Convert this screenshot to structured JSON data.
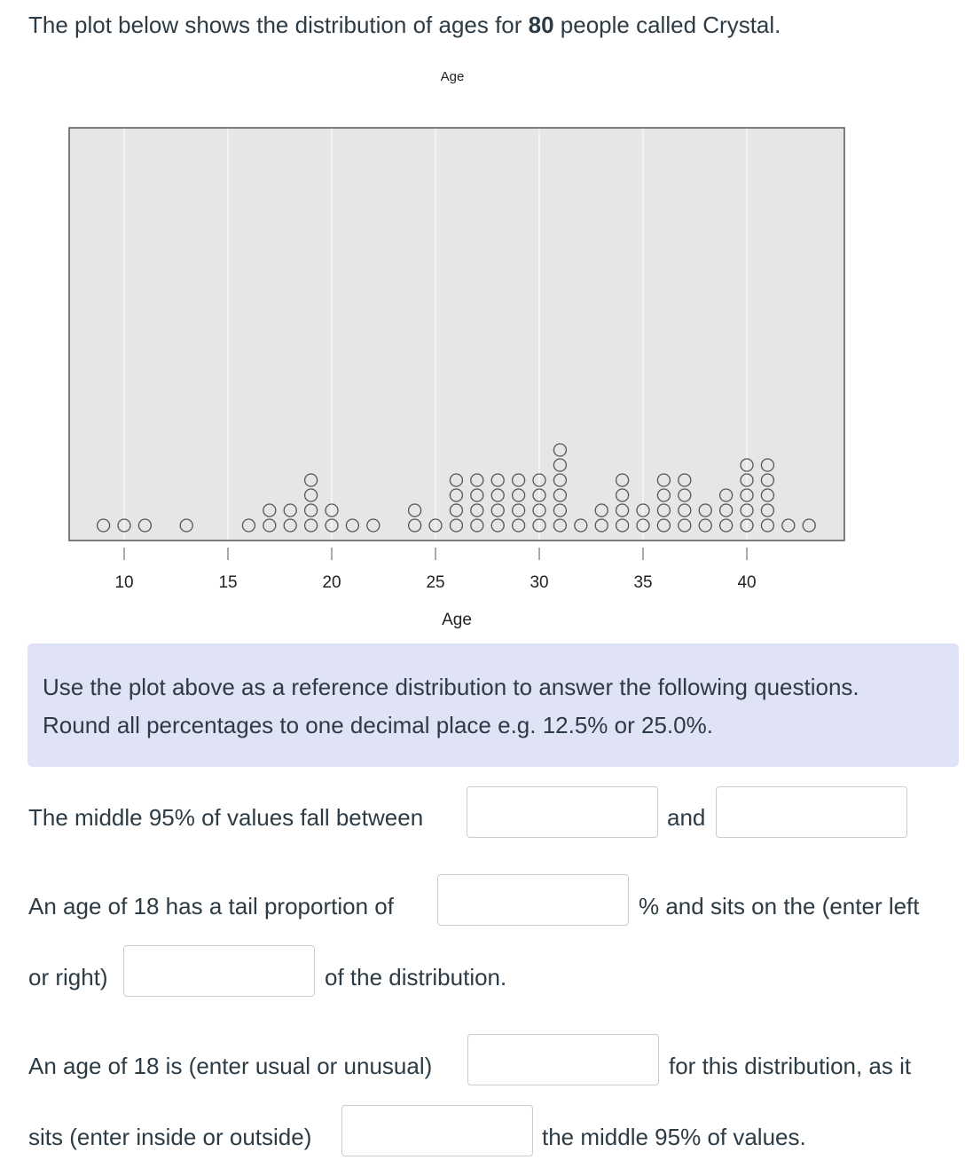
{
  "header": {
    "intro_start": "The plot below shows the distribution of ages for ",
    "count": 80,
    "intro_end": " people called Crystal."
  },
  "chart_data": {
    "type": "dot",
    "title": "Age",
    "x_label": "Age",
    "x": [
      9,
      10,
      11,
      13,
      16,
      17,
      18,
      19,
      20,
      21,
      22,
      24,
      25,
      26,
      27,
      28,
      29,
      30,
      31,
      32,
      33,
      34,
      35,
      36,
      37,
      38,
      39,
      40,
      41,
      42,
      43
    ],
    "values": [
      1,
      1,
      1,
      1,
      1,
      2,
      2,
      4,
      2,
      1,
      1,
      2,
      1,
      4,
      4,
      4,
      4,
      4,
      6,
      1,
      2,
      4,
      2,
      4,
      4,
      2,
      3,
      5,
      5,
      1,
      1
    ],
    "xlim": [
      7.35,
      44.7
    ],
    "xticks": [
      10,
      15,
      20,
      25,
      30,
      35,
      40
    ],
    "grid": true,
    "color": "#555555"
  },
  "instructions": {
    "lines": [
      "Use the plot above as a reference distribution to answer the following questions.",
      "Round all percentages to one decimal place e.g. 12.5% or 25.0%."
    ]
  },
  "questions": {
    "q1": {
      "before": "The middle 95% of values fall between",
      "middle": "and"
    },
    "q2": {
      "before": "An age of 18 has a tail proportion of",
      "after": "% and sits on the (enter left",
      "line2": "or right)",
      "after2": "of the distribution."
    },
    "q3": {
      "before": "An age of 18 is (enter usual or unusual)",
      "after": "for this distribution, as it",
      "line2": "sits (enter inside or outside)",
      "after2": "the middle 95% of values."
    }
  }
}
